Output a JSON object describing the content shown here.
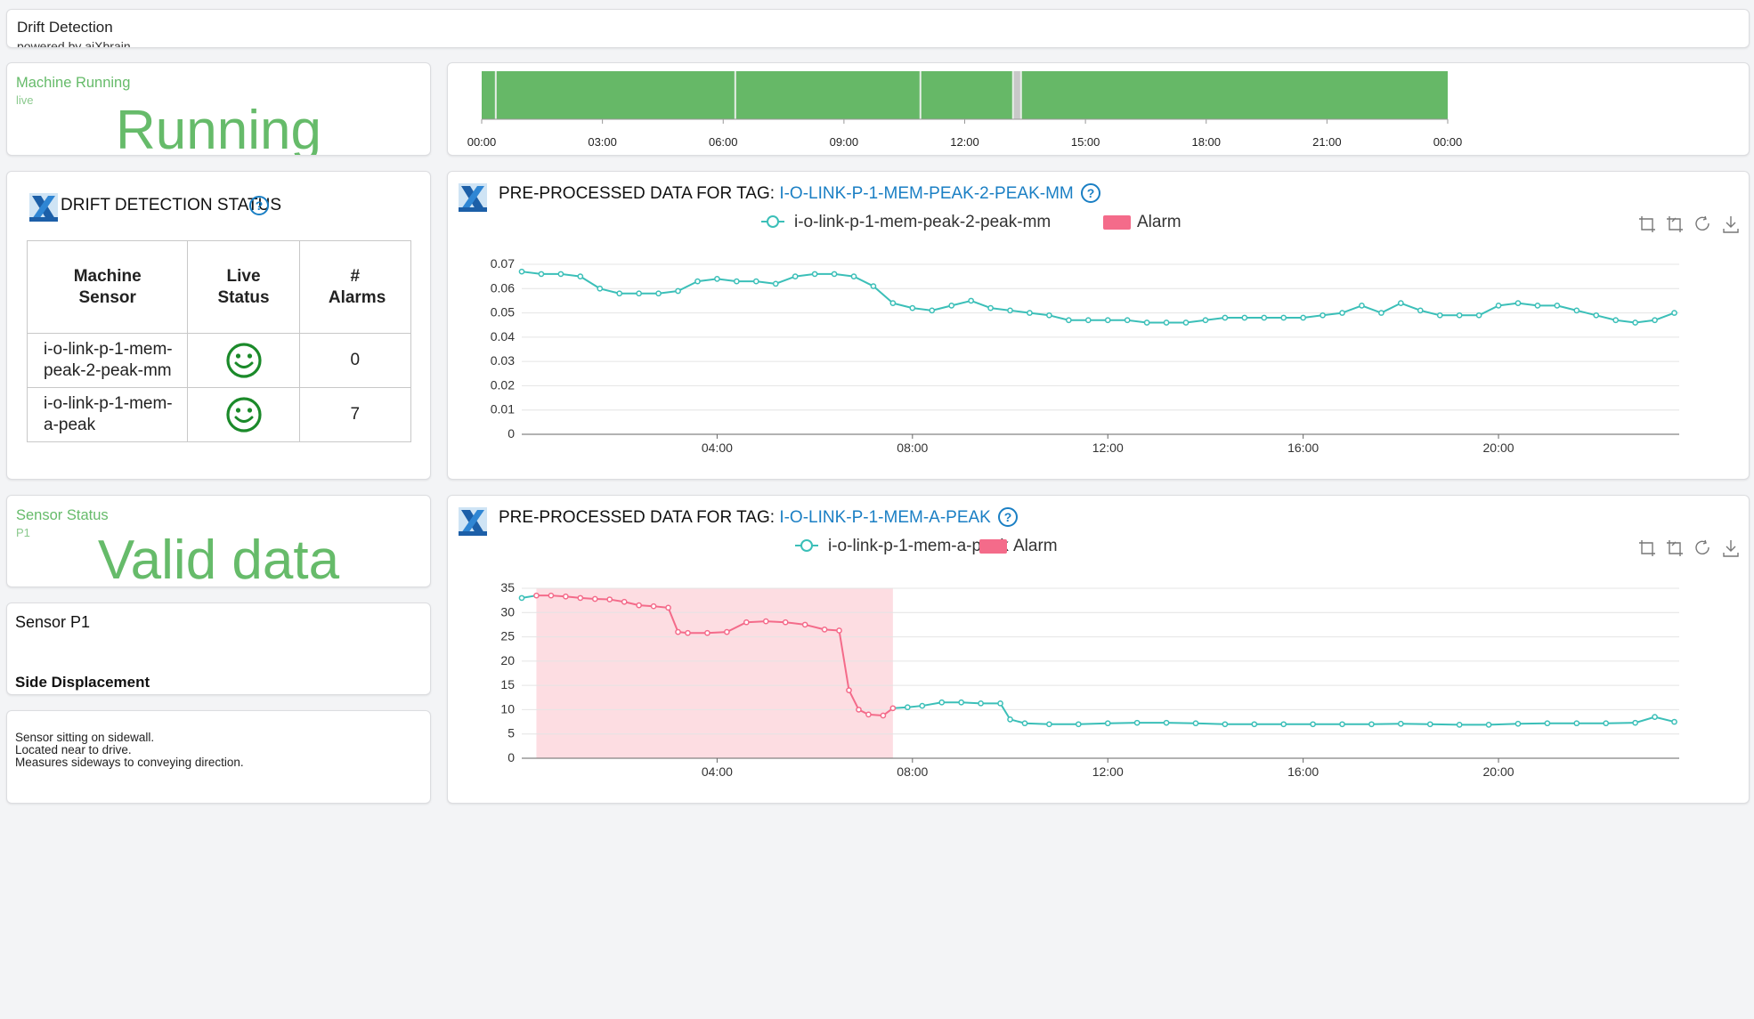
{
  "header": {
    "title": "Drift Detection",
    "subtitle": "powered by aiXbrain"
  },
  "machine_status": {
    "title": "Machine Running",
    "sub": "live",
    "value": "Running"
  },
  "timeline": {
    "ticks": [
      "00:00",
      "03:00",
      "06:00",
      "09:00",
      "12:00",
      "15:00",
      "18:00",
      "21:00",
      "00:00"
    ],
    "segments": [
      {
        "from": 0.0,
        "to": 0.35,
        "state": "running"
      },
      {
        "from": 0.35,
        "to": 6.3,
        "state": "running"
      },
      {
        "from": 6.3,
        "to": 10.9,
        "state": "running"
      },
      {
        "from": 10.9,
        "to": 13.2,
        "state": "running"
      },
      {
        "from": 13.2,
        "to": 13.4,
        "state": "stopped"
      },
      {
        "from": 13.4,
        "to": 24.0,
        "state": "running"
      }
    ],
    "running_color": "#66b867",
    "stopped_color": "#c8c8c8"
  },
  "drift_status": {
    "title": "DRIFT DETECTION STATUS",
    "headers": [
      "Machine Sensor",
      "Live Status",
      "# Alarms"
    ],
    "rows": [
      {
        "sensor": "i-o-link-p-1-mem-peak-2-peak-mm",
        "status_icon": "smiley-icon",
        "alarms": "0"
      },
      {
        "sensor": "i-o-link-p-1-mem-a-peak",
        "status_icon": "smiley-icon",
        "alarms": "7"
      }
    ]
  },
  "sensor_status": {
    "title": "Sensor Status",
    "sub": "P1",
    "value": "Valid data"
  },
  "sensor_info": {
    "name": "Sensor P1",
    "kind": "Side Displacement"
  },
  "sensor_desc": {
    "lines": [
      "Sensor sitting on sidewall.",
      "Located near to drive.",
      "Measures sideways to conveying direction."
    ]
  },
  "chart1_header": {
    "prefix": "PRE-PROCESSED DATA FOR TAG: ",
    "tag": "I-O-LINK-P-1-MEM-PEAK-2-PEAK-MM"
  },
  "chart2_header": {
    "prefix": "PRE-PROCESSED DATA FOR TAG: ",
    "tag": "I-O-LINK-P-1-MEM-A-PEAK"
  },
  "colors": {
    "accent_green": "#66bb6a",
    "series": "#3bbfb8",
    "alarm": "#f46b8a",
    "alarm_area": "#fddde2",
    "link_blue": "#1a7fc4"
  },
  "chart_data": [
    {
      "type": "line",
      "series": [
        {
          "name": "i-o-link-p-1-mem-peak-2-peak-mm",
          "x": [
            0,
            0.4,
            0.8,
            1.2,
            1.6,
            2.0,
            2.4,
            2.8,
            3.2,
            3.6,
            4.0,
            4.4,
            4.8,
            5.2,
            5.6,
            6.0,
            6.4,
            6.8,
            7.2,
            7.6,
            8.0,
            8.4,
            8.8,
            9.2,
            9.6,
            10.0,
            10.4,
            10.8,
            11.2,
            11.6,
            12.0,
            12.4,
            12.8,
            13.2,
            13.6,
            14.0,
            14.4,
            14.8,
            15.2,
            15.6,
            16.0,
            16.4,
            16.8,
            17.2,
            17.6,
            18.0,
            18.4,
            18.8,
            19.2,
            19.6,
            20.0,
            20.4,
            20.8,
            21.2,
            21.6,
            22.0,
            22.4,
            22.8,
            23.2,
            23.6
          ],
          "values": [
            0.067,
            0.066,
            0.066,
            0.065,
            0.06,
            0.058,
            0.058,
            0.058,
            0.059,
            0.063,
            0.064,
            0.063,
            0.063,
            0.062,
            0.065,
            0.066,
            0.066,
            0.065,
            0.061,
            0.054,
            0.052,
            0.051,
            0.053,
            0.055,
            0.052,
            0.051,
            0.05,
            0.049,
            0.047,
            0.047,
            0.047,
            0.047,
            0.046,
            0.046,
            0.046,
            0.047,
            0.048,
            0.048,
            0.048,
            0.048,
            0.048,
            0.049,
            0.05,
            0.053,
            0.05,
            0.054,
            0.051,
            0.049,
            0.049,
            0.049,
            0.053,
            0.054,
            0.053,
            0.053,
            0.051,
            0.049,
            0.047,
            0.046,
            0.047,
            0.05
          ]
        }
      ],
      "alarm": {
        "name": "Alarm",
        "ranges": []
      },
      "xticks": [
        "04:00",
        "08:00",
        "12:00",
        "16:00",
        "20:00"
      ],
      "xrange": [
        0,
        23.7
      ],
      "yticks": [
        "0",
        "0.01",
        "0.02",
        "0.03",
        "0.04",
        "0.05",
        "0.06",
        "0.07"
      ],
      "ylim": [
        0,
        0.07
      ],
      "legend": "top-center",
      "grid": true
    },
    {
      "type": "line",
      "series": [
        {
          "name": "i-o-link-p-1-mem-a-peak",
          "x": [
            0,
            0.3,
            0.6,
            0.9,
            1.2,
            1.5,
            1.8,
            2.1,
            2.4,
            2.7,
            3.0,
            3.2,
            3.4,
            3.8,
            4.2,
            4.6,
            5.0,
            5.4,
            5.8,
            6.2,
            6.5,
            6.7,
            6.9,
            7.1,
            7.4,
            7.6,
            7.9,
            8.2,
            8.6,
            9.0,
            9.4,
            9.8,
            10.0,
            10.3,
            10.8,
            11.4,
            12.0,
            12.6,
            13.2,
            13.8,
            14.4,
            15.0,
            15.6,
            16.2,
            16.8,
            17.4,
            18.0,
            18.6,
            19.2,
            19.8,
            20.4,
            21.0,
            21.6,
            22.2,
            22.8,
            23.2,
            23.6
          ],
          "values": [
            33,
            33.5,
            33.5,
            33.3,
            33.0,
            32.8,
            32.7,
            32.2,
            31.5,
            31.3,
            31.0,
            26.0,
            25.8,
            25.8,
            26.0,
            28.0,
            28.2,
            28.0,
            27.5,
            26.5,
            26.3,
            14.0,
            10.0,
            9.0,
            8.8,
            10.3,
            10.5,
            10.8,
            11.5,
            11.5,
            11.3,
            11.3,
            8.0,
            7.2,
            7.0,
            7.0,
            7.2,
            7.3,
            7.3,
            7.2,
            7.0,
            7.0,
            7.0,
            7.0,
            7.0,
            7.0,
            7.1,
            7.0,
            6.9,
            6.9,
            7.1,
            7.2,
            7.2,
            7.2,
            7.3,
            8.5,
            7.5
          ]
        }
      ],
      "alarm": {
        "name": "Alarm",
        "ranges": [
          [
            0.3,
            7.6
          ]
        ]
      },
      "xticks": [
        "04:00",
        "08:00",
        "12:00",
        "16:00",
        "20:00"
      ],
      "xrange": [
        0,
        23.7
      ],
      "yticks": [
        "0",
        "5",
        "10",
        "15",
        "20",
        "25",
        "30",
        "35"
      ],
      "ylim": [
        0,
        35
      ],
      "legend": "top-center",
      "grid": true
    }
  ]
}
